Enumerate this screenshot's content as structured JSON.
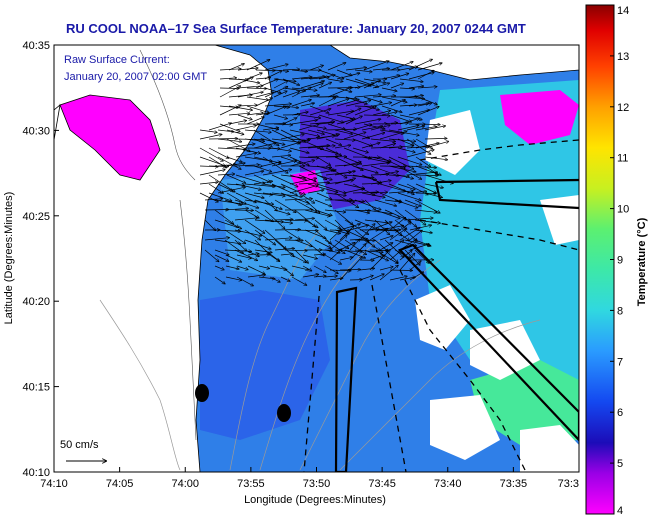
{
  "chart_data": {
    "type": "heatmap",
    "title": "RU COOL  NOAA–17  Sea Surface Temperature:  January 20, 2007 0244 GMT",
    "annotation": {
      "line1": "Raw Surface Current:",
      "line2": "January 20, 2007 02:00 GMT"
    },
    "xlabel": "Longitude (Degrees:Minutes)",
    "ylabel": "Latitude (Degrees:Minutes)",
    "x_ticks": [
      "74:10",
      "74:05",
      "74:00",
      "73:55",
      "73:50",
      "73:45",
      "73:40",
      "73:35",
      "73:3"
    ],
    "y_ticks": [
      "40:35",
      "40:30",
      "40:25",
      "40:20",
      "40:15",
      "40:10"
    ],
    "scale_label": "50 cm/s",
    "colorbar": {
      "label": "Temperature (°C)",
      "min": 4,
      "max": 14,
      "ticks": [
        "4",
        "5",
        "6",
        "7",
        "8",
        "9",
        "10",
        "11",
        "12",
        "13",
        "14"
      ]
    },
    "colors": {
      "title": "#1a1aa8",
      "annotation": "#1a1aa8",
      "land": "#ffffff",
      "coast": "#000000"
    }
  }
}
